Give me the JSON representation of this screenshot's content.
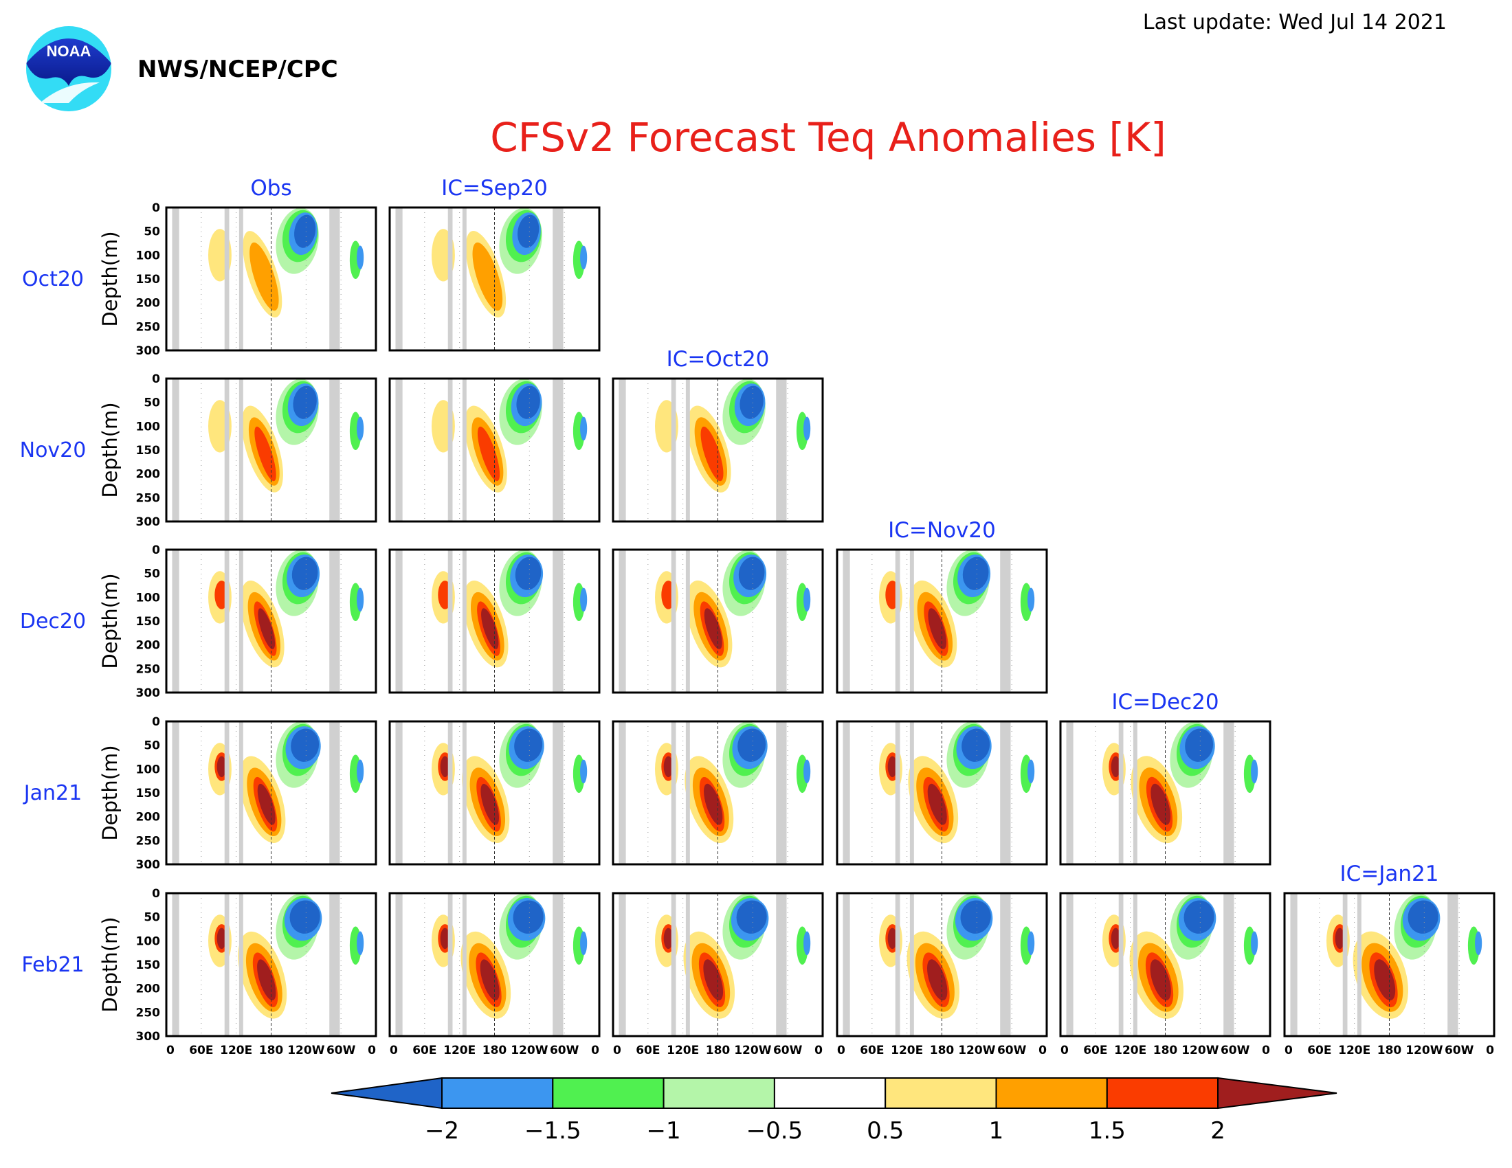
{
  "header": {
    "agency": "NWS/NCEP/CPC",
    "logo_text": "NOAA",
    "last_update": "Last update: Wed Jul 14 2021"
  },
  "colors": {
    "title": "#e8201a",
    "panel_label": "#1a35f2",
    "frame": "#000000",
    "land_mask": "#d0d0d0"
  },
  "chart_data": {
    "type": "heatmap",
    "title": "CFSv2 Forecast Teq Anomalies [K]",
    "units": "K",
    "ylabel": "Depth(m)",
    "y_ticks": [
      "0",
      "50",
      "100",
      "150",
      "200",
      "250",
      "300"
    ],
    "ylim": [
      0,
      300
    ],
    "x_ticks": [
      "0",
      "60E",
      "120E",
      "180",
      "120W",
      "60W",
      "0"
    ],
    "rows": [
      "Oct20",
      "Nov20",
      "Dec20",
      "Jan21",
      "Feb21"
    ],
    "columns": [
      "Obs",
      "IC=Sep20",
      "IC=Oct20",
      "IC=Nov20",
      "IC=Dec20",
      "IC=Jan21"
    ],
    "colorbar": {
      "tick_labels": [
        "−2",
        "−1.5",
        "−1",
        "−0.5",
        "0.5",
        "1",
        "1.5",
        "2"
      ],
      "colors": [
        "#1f64c8",
        "#3c96f0",
        "#50f050",
        "#b4f5a9",
        "#ffffff",
        "#ffe67d",
        "#ffa000",
        "#fa3c00",
        "#a01e1e"
      ]
    }
  }
}
